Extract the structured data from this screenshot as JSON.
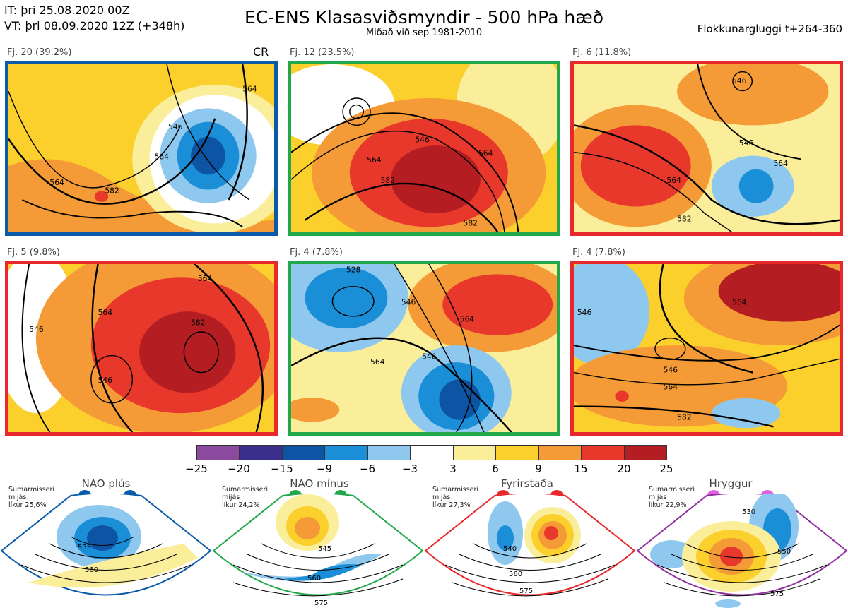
{
  "header": {
    "it_line": "IT: þri 25.08.2020 00Z",
    "vt_line": "VT: þri 08.09.2020 12Z  (+348h)",
    "title": "EC-ENS Klasasviðsmyndir - 500 hPa hæð",
    "subtitle": "Miðað við sep 1981-2010",
    "window": "Flokkunargluggi t+264-360"
  },
  "clusters": [
    {
      "label": "Fj. 20 (39.2%)",
      "border_color": "#0a5aa8",
      "extra": "CR",
      "contours": [
        "564",
        "546",
        "564",
        "564",
        "582"
      ]
    },
    {
      "label": "Fj. 12 (23.5%)",
      "border_color": "#22a84a",
      "extra": "",
      "contours": [
        "546",
        "564",
        "582",
        "564",
        "582"
      ]
    },
    {
      "label": "Fj. 6 (11.8%)",
      "border_color": "#e8282a",
      "extra": "",
      "contours": [
        "546",
        "564",
        "546",
        "582",
        "564"
      ]
    },
    {
      "label": "Fj. 5 (9.8%)",
      "border_color": "#e8282a",
      "extra": "",
      "contours": [
        "546",
        "564",
        "546",
        "582",
        "564"
      ]
    },
    {
      "label": "Fj. 4 (7.8%)",
      "border_color": "#22a84a",
      "extra": "",
      "contours": [
        "528",
        "546",
        "564",
        "546",
        "564"
      ]
    },
    {
      "label": "Fj. 4 (7.8%)",
      "border_color": "#e8282a",
      "extra": "",
      "contours": [
        "546",
        "564",
        "546",
        "564",
        "582"
      ]
    }
  ],
  "colorbar": {
    "colors": [
      "#8c4a9e",
      "#3b2f8c",
      "#0d55a4",
      "#1a8fd8",
      "#8fc8ee",
      "#ffffff",
      "#fbee9a",
      "#fbcf2c",
      "#f49a36",
      "#e8382c",
      "#b41e22"
    ],
    "ticks": [
      "−25",
      "−20",
      "−15",
      "−9",
      "−6",
      "−3",
      "3",
      "6",
      "9",
      "15",
      "20",
      "25"
    ]
  },
  "regimes": [
    {
      "title": "NAO plús",
      "season": "Sumarmisseri",
      "mean": "mijás",
      "likelihood": "líkur 25,6%",
      "color": "#0a5aa8",
      "contours": [
        "535",
        "560"
      ]
    },
    {
      "title": "NAO mínus",
      "season": "Sumarmisseri",
      "mean": "mijás",
      "likelihood": "líkur 24,2%",
      "color": "#22a84a",
      "contours": [
        "545",
        "560",
        "575"
      ]
    },
    {
      "title": "Fyrirstaða",
      "season": "Sumarmisseri",
      "mean": "mijás",
      "likelihood": "líkur 27,3%",
      "color": "#e8282a",
      "contours": [
        "540",
        "560",
        "575"
      ]
    },
    {
      "title": "Hryggur",
      "season": "Sumarmisseri",
      "mean": "mijás",
      "likelihood": "líkur 22,9%",
      "color": "#e060e0",
      "contours": [
        "530",
        "550",
        "575"
      ]
    }
  ]
}
